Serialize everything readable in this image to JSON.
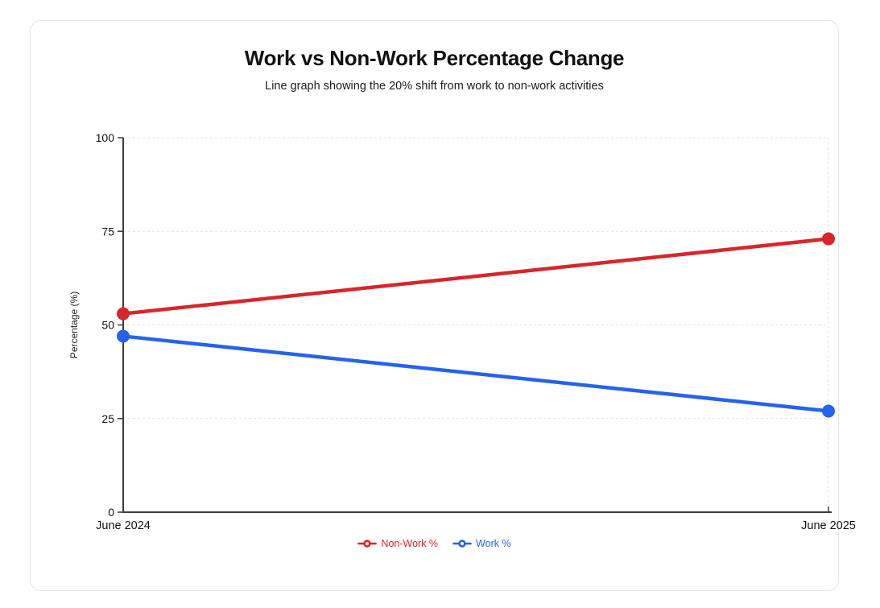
{
  "header": {
    "title": "Work vs Non-Work Percentage Change",
    "subtitle": "Line graph showing the 20% shift from work to non-work activities"
  },
  "chart_data": {
    "type": "line",
    "x": [
      "June 2024",
      "June 2025"
    ],
    "series": [
      {
        "name": "Non-Work %",
        "values": [
          53,
          73
        ],
        "color": "#d7262b"
      },
      {
        "name": "Work %",
        "values": [
          47,
          27
        ],
        "color": "#2563eb"
      }
    ],
    "title": "Work vs Non-Work Percentage Change",
    "xlabel": "",
    "ylabel": "Percentage (%)",
    "ylim": [
      0,
      100
    ],
    "yticks": [
      0,
      25,
      50,
      75,
      100
    ],
    "grid": "dashed",
    "legend_position": "bottom",
    "colors": {
      "axis": "#3d3d3d",
      "tick_text": "#111111",
      "grid": "#e2e2e2",
      "axis_title": "#222222"
    }
  }
}
